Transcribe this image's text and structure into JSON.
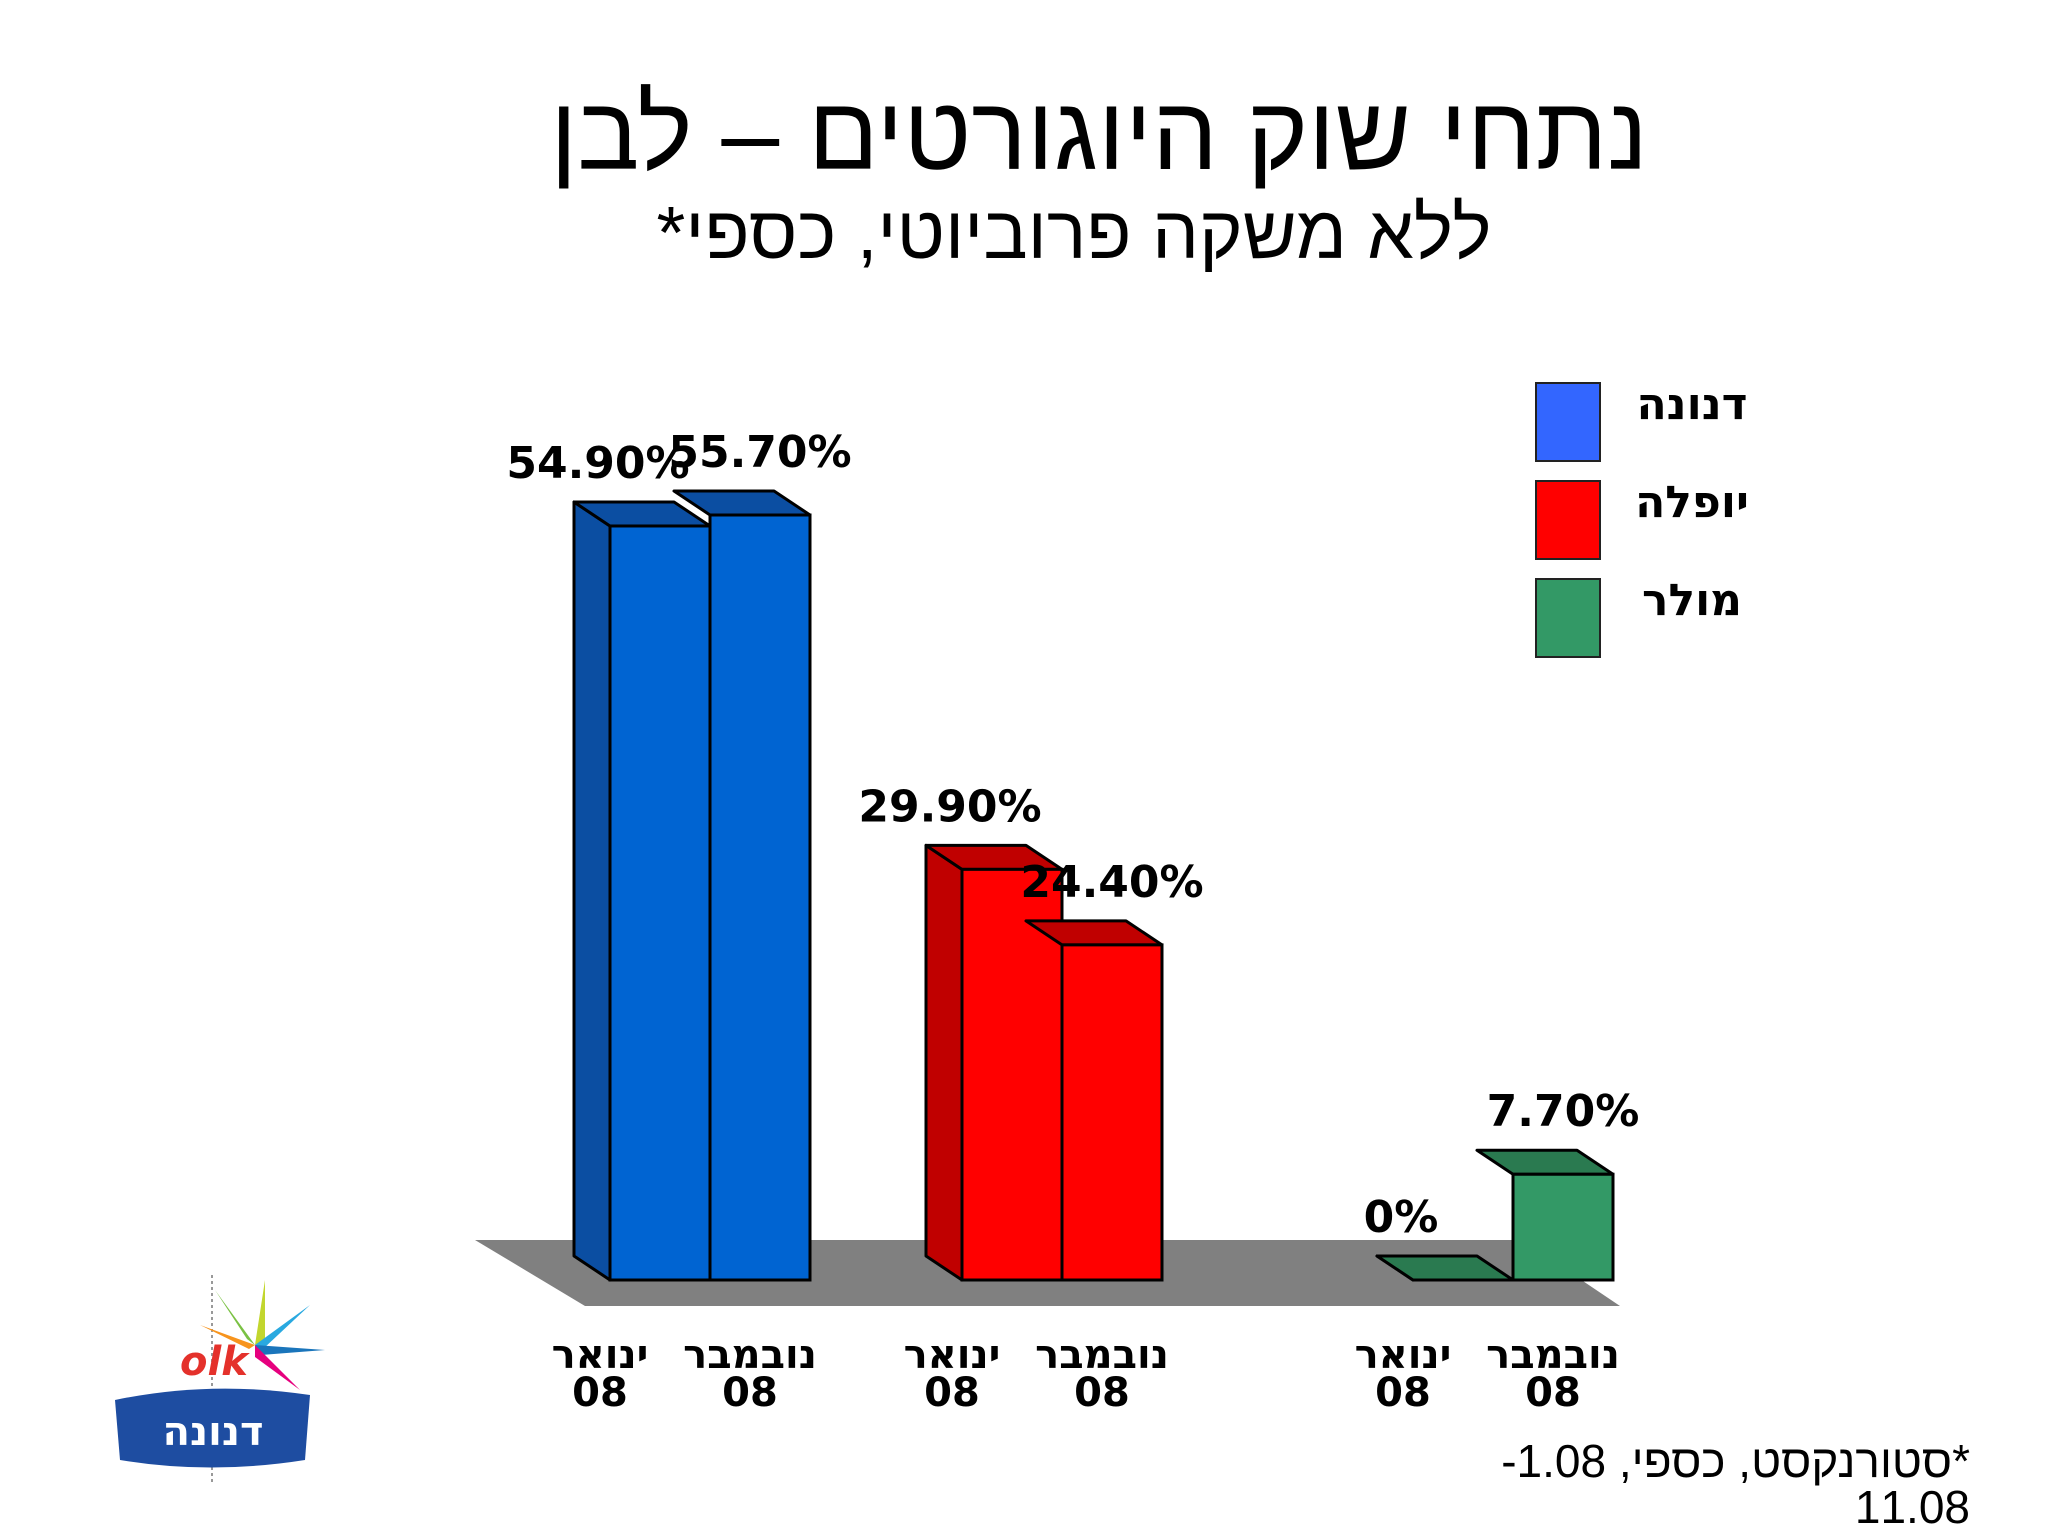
{
  "title": "נתחי שוק היוגורטים – לבן",
  "subtitle": "ללא משקה פרוביוטי, כספי*",
  "footnote": "*סטורנקסט, כספי, 1.08- 11.08",
  "logo": {
    "text": "דנונה"
  },
  "colors": {
    "danone": "#0064D2",
    "yoplait": "#FF0000",
    "muller": "#339966",
    "floor": "#808080"
  },
  "legend": [
    {
      "label": "דנונה",
      "color": "#3366FF"
    },
    {
      "label": "יופלה",
      "color": "#FF0000"
    },
    {
      "label": "מולר",
      "color": "#339966"
    }
  ],
  "chart_data": {
    "type": "bar",
    "groups": [
      {
        "name": "דנונה",
        "bars": [
          {
            "category": "ינואר 08",
            "value": 54.9,
            "label": "54.90%"
          },
          {
            "category": "נובמבר 08",
            "value": 55.7,
            "label": "55.70%"
          }
        ]
      },
      {
        "name": "יופלה",
        "bars": [
          {
            "category": "ינואר 08",
            "value": 29.9,
            "label": "29.90%"
          },
          {
            "category": "נובמבר 08",
            "value": 24.4,
            "label": "24.40%"
          }
        ]
      },
      {
        "name": "מולר",
        "bars": [
          {
            "category": "ינואר 08",
            "value": 0,
            "label": "0%"
          },
          {
            "category": "נובמבר 08",
            "value": 7.7,
            "label": "7.70%"
          }
        ]
      }
    ],
    "category_labels": [
      [
        "ינואר",
        "08"
      ],
      [
        "נובמבר",
        "08"
      ]
    ],
    "ylim": [
      0,
      60
    ]
  }
}
